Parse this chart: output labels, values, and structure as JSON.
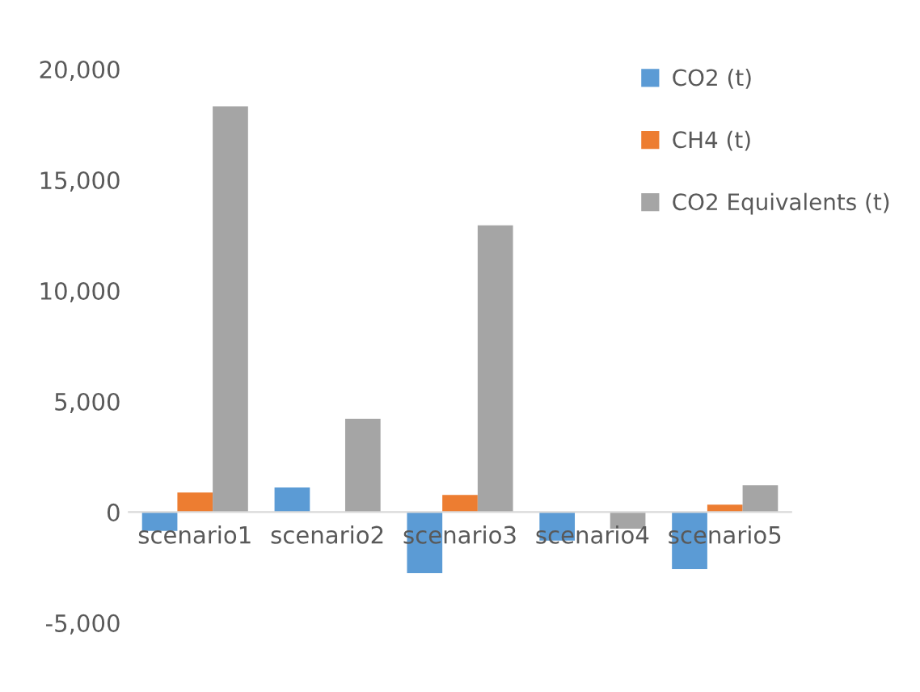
{
  "chart_data": {
    "type": "bar",
    "categories": [
      "scenario1",
      "scenario2",
      "scenario3",
      "scenario4",
      "scenario5"
    ],
    "series": [
      {
        "name": "CO2 (t)",
        "color": "#5b9bd5",
        "values": [
          -850,
          1110,
          -2760,
          -1290,
          -2580
        ]
      },
      {
        "name": "CH4 (t)",
        "color": "#ed7d31",
        "values": [
          880,
          0,
          770,
          0,
          340
        ]
      },
      {
        "name": "CO2 Equivalents (t)",
        "color": "#a5a5a5",
        "values": [
          18320,
          4210,
          12950,
          -750,
          1210
        ]
      }
    ],
    "ylim": [
      -5000,
      20000
    ],
    "yticks": [
      {
        "value": -5000,
        "label": "-5,000"
      },
      {
        "value": 0,
        "label": "0"
      },
      {
        "value": 5000,
        "label": "5,000"
      },
      {
        "value": 10000,
        "label": "10,000"
      },
      {
        "value": 15000,
        "label": "15,000"
      },
      {
        "value": 20000,
        "label": "20,000"
      }
    ],
    "grid": false,
    "legend": "top right"
  }
}
